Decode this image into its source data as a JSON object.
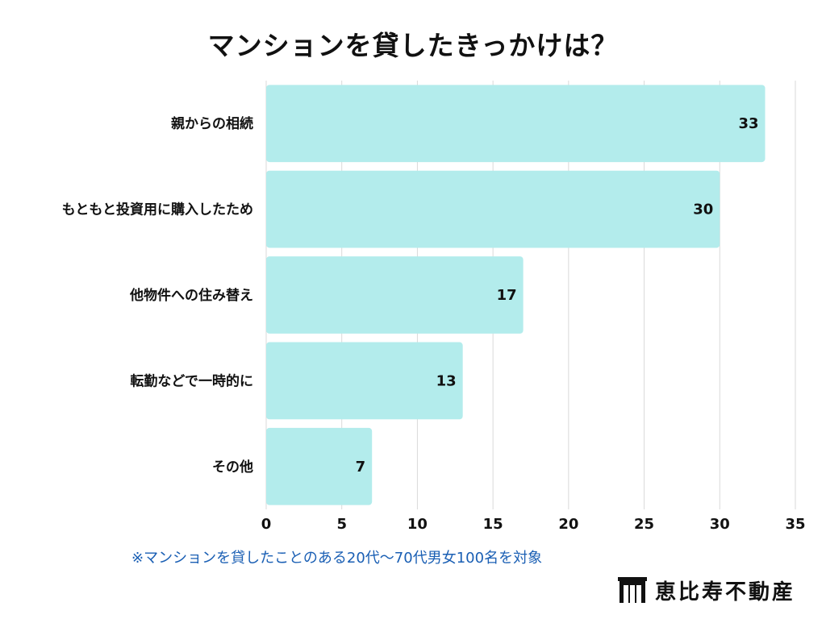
{
  "chart_data": {
    "type": "bar",
    "orientation": "horizontal",
    "title": "マンションを貸したきっかけは？",
    "categories": [
      "親からの相続",
      "もともと投資用に購入したため",
      "他物件への住み替え",
      "転勤などで一時的に",
      "その他"
    ],
    "values": [
      33,
      30,
      17,
      13,
      7
    ],
    "xlim": [
      0,
      35
    ],
    "xticks": [
      0,
      5,
      10,
      15,
      20,
      25,
      30,
      35
    ],
    "grid": true,
    "bar_color": "#b3ecec",
    "grid_color": "#d9d9d9"
  },
  "footnote": "※マンションを貸したことのある20代〜70代男女100名を対象",
  "brand": {
    "name": "恵比寿不動産",
    "logo_icon": "building-logo-icon"
  }
}
